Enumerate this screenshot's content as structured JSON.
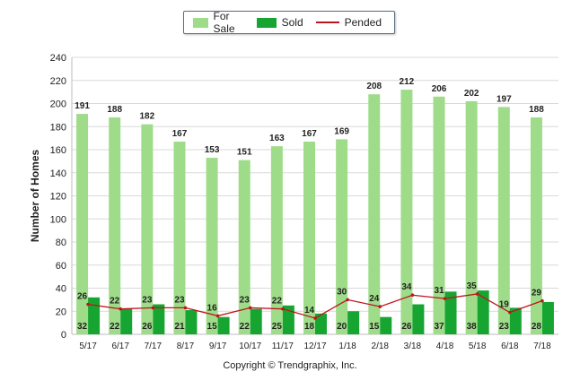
{
  "chart_data": {
    "type": "bar",
    "title": "",
    "xlabel": "",
    "ylabel": "Number of Homes",
    "ylim": [
      0,
      240
    ],
    "yticks": [
      0,
      20,
      40,
      60,
      80,
      100,
      120,
      140,
      160,
      180,
      200,
      220,
      240
    ],
    "grid": true,
    "legend_position": "top-center",
    "categories": [
      "5/17",
      "6/17",
      "7/17",
      "8/17",
      "9/17",
      "10/17",
      "11/17",
      "12/17",
      "1/18",
      "2/18",
      "3/18",
      "4/18",
      "5/18",
      "6/18",
      "7/18"
    ],
    "series": [
      {
        "name": "For Sale",
        "kind": "bar",
        "color": "#9fdc8a",
        "values": [
          191,
          188,
          182,
          167,
          153,
          151,
          163,
          167,
          169,
          208,
          212,
          206,
          202,
          197,
          188
        ]
      },
      {
        "name": "Sold",
        "kind": "bar",
        "color": "#17a531",
        "values": [
          32,
          22,
          26,
          21,
          15,
          22,
          25,
          18,
          20,
          15,
          26,
          37,
          38,
          23,
          28
        ]
      },
      {
        "name": "Pended",
        "kind": "line",
        "color": "#c0141c",
        "values": [
          26,
          22,
          23,
          23,
          16,
          23,
          22,
          14,
          30,
          24,
          34,
          31,
          35,
          19,
          29
        ]
      }
    ],
    "colors": {
      "grid": "#d9d9d9",
      "axis": "#bdbdbd",
      "label": "#222222"
    }
  },
  "footer": {
    "copyright": "Copyright © Trendgraphix, Inc."
  }
}
